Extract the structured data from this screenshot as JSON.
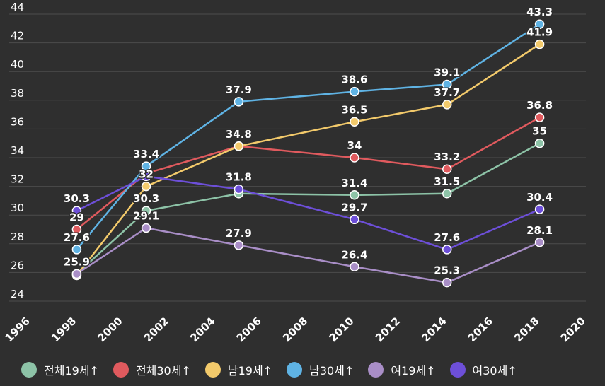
{
  "chart_data": {
    "type": "line",
    "xlim": [
      1996,
      2020
    ],
    "ylim": [
      24,
      44
    ],
    "x_ticks": [
      1996,
      1998,
      2000,
      2002,
      2004,
      2006,
      2008,
      2010,
      2012,
      2014,
      2016,
      2018,
      2020
    ],
    "y_ticks": [
      24,
      26,
      28,
      30,
      32,
      34,
      36,
      38,
      40,
      42,
      44
    ],
    "grid": true,
    "legend_position": "bottom",
    "series": [
      {
        "name": "전체19세↑",
        "color": "#8dc3a7",
        "x": [
          1998,
          2001,
          2005,
          2010,
          2014,
          2018
        ],
        "values": [
          25.9,
          30.3,
          31.5,
          31.4,
          31.5,
          35
        ],
        "labels": [
          "",
          "30.3",
          "",
          "31.4",
          "31.5",
          "35"
        ]
      },
      {
        "name": "전체30세↑",
        "color": "#e05a5e",
        "x": [
          1998,
          2001,
          2005,
          2010,
          2014,
          2018
        ],
        "values": [
          29,
          32.9,
          34.8,
          34,
          33.2,
          36.8
        ],
        "labels": [
          "29",
          "",
          "",
          "34",
          "33.2",
          "36.8"
        ]
      },
      {
        "name": "남19세↑",
        "color": "#f3ca6b",
        "x": [
          1998,
          2001,
          2005,
          2010,
          2014,
          2018
        ],
        "values": [
          25.8,
          32,
          34.8,
          36.5,
          37.7,
          41.9
        ],
        "labels": [
          "",
          "32",
          "34.8",
          "36.5",
          "37.7",
          "41.9"
        ]
      },
      {
        "name": "남30세↑",
        "color": "#5fb3e4",
        "x": [
          1998,
          2001,
          2005,
          2010,
          2014,
          2018
        ],
        "values": [
          27.6,
          33.4,
          37.9,
          38.6,
          39.1,
          43.3
        ],
        "labels": [
          "27.6",
          "33.4",
          "37.9",
          "38.6",
          "39.1",
          "43.3"
        ]
      },
      {
        "name": "여19세↑",
        "color": "#a98ec7",
        "x": [
          1998,
          2001,
          2005,
          2010,
          2014,
          2018
        ],
        "values": [
          25.9,
          29.1,
          27.9,
          26.4,
          25.3,
          28.1
        ],
        "labels": [
          "25.9",
          "29.1",
          "27.9",
          "26.4",
          "25.3",
          "28.1"
        ]
      },
      {
        "name": "여30세↑",
        "color": "#6d4fd8",
        "x": [
          1998,
          2001,
          2005,
          2010,
          2014,
          2018
        ],
        "values": [
          30.3,
          32.7,
          31.8,
          29.7,
          27.6,
          30.4
        ],
        "labels": [
          "30.3",
          "",
          "31.8",
          "29.7",
          "27.6",
          "30.4"
        ]
      }
    ]
  }
}
